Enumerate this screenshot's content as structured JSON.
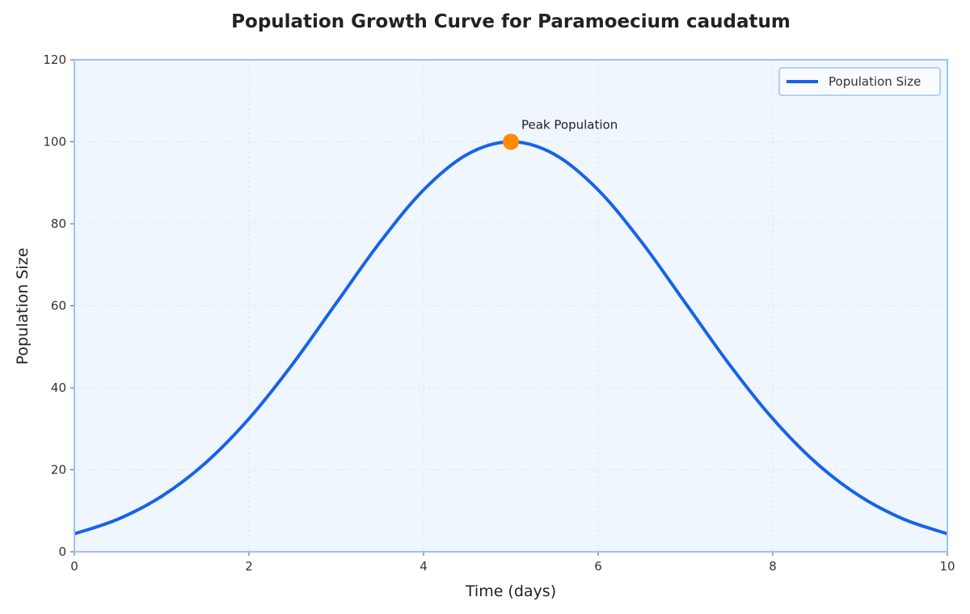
{
  "chart_data": {
    "type": "line",
    "title": "Population Growth Curve for Paramoecium caudatum",
    "xlabel": "Time (days)",
    "ylabel": "Population Size",
    "xlim": [
      0,
      10
    ],
    "ylim": [
      0,
      120
    ],
    "xticks": [
      0,
      2,
      4,
      6,
      8,
      10
    ],
    "yticks": [
      0,
      20,
      40,
      60,
      80,
      100,
      120
    ],
    "grid": true,
    "legend_position": "top-right",
    "series": [
      {
        "name": "Population Size",
        "color": "#1763e8",
        "x": [
          0,
          0.5,
          1,
          1.5,
          2,
          2.5,
          3,
          3.5,
          4,
          4.5,
          5,
          5.5,
          6,
          6.5,
          7,
          7.5,
          8,
          8.5,
          9,
          9.5,
          10
        ],
        "y": [
          4.39,
          7.96,
          13.53,
          21.63,
          32.47,
          45.78,
          60.65,
          75.48,
          88.25,
          96.92,
          100,
          96.92,
          88.25,
          75.48,
          60.65,
          45.78,
          32.47,
          21.63,
          13.53,
          7.96,
          4.39
        ]
      }
    ],
    "annotations": [
      {
        "text": "Peak Population",
        "x": 5,
        "y": 100,
        "marker_color": "#ff8c00"
      }
    ],
    "colors": {
      "plot_background": "#f0f6fe",
      "frame": "#9ec1f5"
    }
  }
}
